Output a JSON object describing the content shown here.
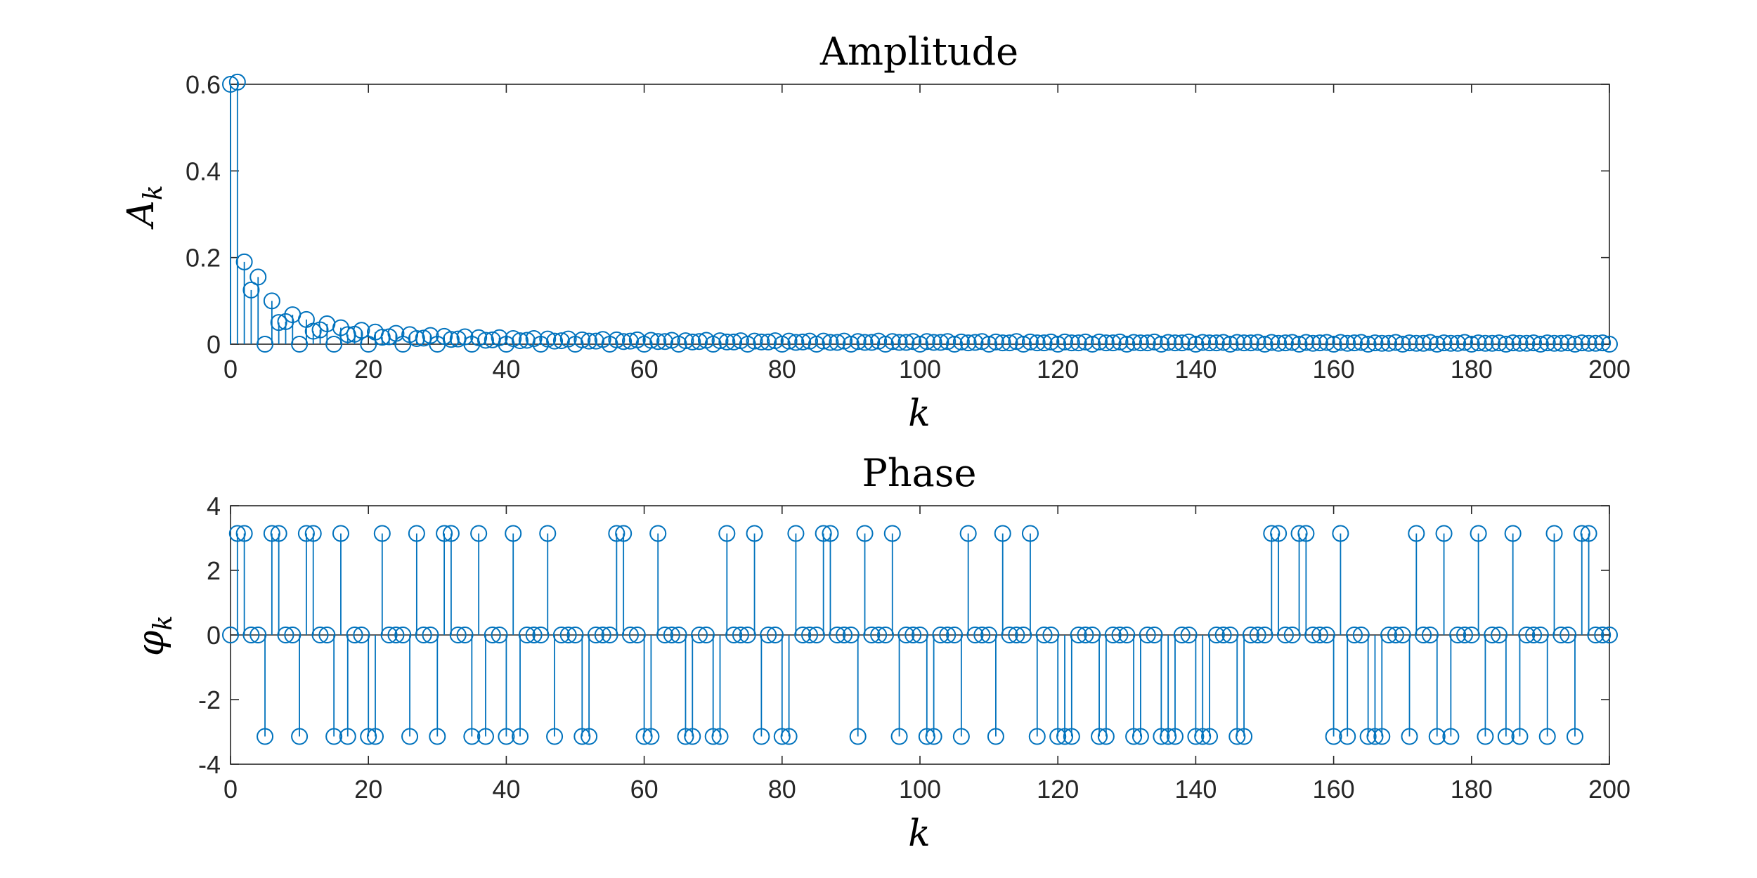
{
  "chart_data": [
    {
      "type": "stem",
      "title": "Amplitude",
      "xlabel": "k",
      "ylabel": "A",
      "ylabel_sub": "k",
      "xlim": [
        0,
        200
      ],
      "ylim": [
        0,
        0.6
      ],
      "xticks": [
        0,
        20,
        40,
        60,
        80,
        100,
        120,
        140,
        160,
        180,
        200
      ],
      "xtick_labels": [
        "0",
        "20",
        "40",
        "60",
        "80",
        "100",
        "120",
        "140",
        "160",
        "180",
        "200"
      ],
      "yticks": [
        0,
        0.2,
        0.4,
        0.6
      ],
      "ytick_labels": [
        "0",
        "0.2",
        "0.4",
        "0.6"
      ],
      "color": "#0072BD",
      "x_start": 0,
      "values": [
        0.6,
        0.605,
        0.19,
        0.125,
        0.155,
        0.0,
        0.1,
        0.05,
        0.052,
        0.068,
        0.0,
        0.057,
        0.03,
        0.033,
        0.047,
        0.0,
        0.038,
        0.022,
        0.023,
        0.032,
        0.0,
        0.028,
        0.016,
        0.017,
        0.025,
        0.0,
        0.022,
        0.013,
        0.014,
        0.02,
        0.0,
        0.018,
        0.011,
        0.012,
        0.017,
        0.0,
        0.015,
        0.009,
        0.01,
        0.015,
        0.0,
        0.013,
        0.008,
        0.009,
        0.013,
        0.0,
        0.012,
        0.007,
        0.008,
        0.012,
        0.0,
        0.01,
        0.007,
        0.007,
        0.011,
        0.0,
        0.01,
        0.006,
        0.007,
        0.01,
        0.0,
        0.009,
        0.006,
        0.006,
        0.009,
        0.0,
        0.008,
        0.005,
        0.006,
        0.009,
        0.0,
        0.008,
        0.005,
        0.005,
        0.008,
        0.0,
        0.007,
        0.005,
        0.005,
        0.008,
        0.0,
        0.007,
        0.004,
        0.005,
        0.007,
        0.0,
        0.007,
        0.004,
        0.004,
        0.007,
        0.0,
        0.006,
        0.004,
        0.004,
        0.007,
        0.0,
        0.006,
        0.004,
        0.004,
        0.006,
        0.0,
        0.006,
        0.004,
        0.004,
        0.006,
        0.0,
        0.005,
        0.003,
        0.004,
        0.006,
        0.0,
        0.005,
        0.003,
        0.003,
        0.006,
        0.0,
        0.005,
        0.003,
        0.003,
        0.005,
        0.0,
        0.005,
        0.003,
        0.003,
        0.005,
        0.0,
        0.005,
        0.003,
        0.003,
        0.005,
        0.0,
        0.004,
        0.003,
        0.003,
        0.005,
        0.0,
        0.004,
        0.003,
        0.003,
        0.005,
        0.0,
        0.004,
        0.003,
        0.003,
        0.004,
        0.0,
        0.004,
        0.003,
        0.003,
        0.004,
        0.0,
        0.004,
        0.002,
        0.003,
        0.004,
        0.0,
        0.004,
        0.002,
        0.003,
        0.004,
        0.0,
        0.004,
        0.002,
        0.003,
        0.004,
        0.0,
        0.003,
        0.002,
        0.002,
        0.004,
        0.0,
        0.003,
        0.002,
        0.002,
        0.004,
        0.0,
        0.003,
        0.002,
        0.002,
        0.004,
        0.0,
        0.003,
        0.002,
        0.002,
        0.003,
        0.0,
        0.003,
        0.002,
        0.002,
        0.003,
        0.0,
        0.003,
        0.002,
        0.002,
        0.003,
        0.0,
        0.003,
        0.002,
        0.002,
        0.003,
        0.0
      ]
    },
    {
      "type": "stem",
      "title": "Phase",
      "xlabel": "k",
      "ylabel": "φ",
      "ylabel_sub": "k",
      "xlim": [
        0,
        200
      ],
      "ylim": [
        -4,
        4
      ],
      "xticks": [
        0,
        20,
        40,
        60,
        80,
        100,
        120,
        140,
        160,
        180,
        200
      ],
      "xtick_labels": [
        "0",
        "20",
        "40",
        "60",
        "80",
        "100",
        "120",
        "140",
        "160",
        "180",
        "200"
      ],
      "yticks": [
        -4,
        -2,
        0,
        2,
        4
      ],
      "ytick_labels": [
        "-4",
        "-2",
        "0",
        "2",
        "4"
      ],
      "color": "#0072BD",
      "x_start": 0,
      "values": [
        0,
        3.1416,
        3.1416,
        0,
        0,
        -3.1416,
        3.1416,
        3.1416,
        0,
        0,
        -3.1416,
        3.1416,
        3.1416,
        0,
        0,
        -3.1416,
        3.1416,
        -3.1416,
        0,
        0,
        -3.1416,
        -3.1416,
        3.1416,
        0,
        0,
        0,
        -3.1416,
        3.1416,
        0,
        0,
        -3.1416,
        3.1416,
        3.1416,
        0,
        0,
        -3.1416,
        3.1416,
        -3.1416,
        0,
        0,
        -3.1416,
        3.1416,
        -3.1416,
        0,
        0,
        0,
        3.1416,
        -3.1416,
        0,
        0,
        0,
        -3.1416,
        -3.1416,
        0,
        0,
        0,
        3.1416,
        3.1416,
        0,
        0,
        -3.1416,
        -3.1416,
        3.1416,
        0,
        0,
        0,
        -3.1416,
        -3.1416,
        0,
        0,
        -3.1416,
        -3.1416,
        3.1416,
        0,
        0,
        0,
        3.1416,
        -3.1416,
        0,
        0,
        -3.1416,
        -3.1416,
        3.1416,
        0,
        0,
        0,
        3.1416,
        3.1416,
        0,
        0,
        0,
        -3.1416,
        3.1416,
        0,
        0,
        0,
        3.1416,
        -3.1416,
        0,
        0,
        0,
        -3.1416,
        -3.1416,
        0,
        0,
        0,
        -3.1416,
        3.1416,
        0,
        0,
        0,
        -3.1416,
        3.1416,
        0,
        0,
        0,
        3.1416,
        -3.1416,
        0,
        0,
        -3.1416,
        -3.1416,
        -3.1416,
        0,
        0,
        0,
        -3.1416,
        -3.1416,
        0,
        0,
        0,
        -3.1416,
        -3.1416,
        0,
        0,
        -3.1416,
        -3.1416,
        -3.1416,
        0,
        0,
        -3.1416,
        -3.1416,
        -3.1416,
        0,
        0,
        0,
        -3.1416,
        -3.1416,
        0,
        0,
        0,
        3.1416,
        3.1416,
        0,
        0,
        3.1416,
        3.1416,
        0,
        0,
        0,
        -3.1416,
        3.1416,
        -3.1416,
        0,
        0,
        -3.1416,
        -3.1416,
        -3.1416,
        0,
        0,
        0,
        -3.1416,
        3.1416,
        0,
        0,
        -3.1416,
        3.1416,
        -3.1416,
        0,
        0,
        0,
        3.1416,
        -3.1416,
        0,
        0,
        -3.1416,
        3.1416,
        -3.1416,
        0,
        0,
        0,
        -3.1416,
        3.1416,
        0,
        0,
        -3.1416,
        3.1416,
        3.1416,
        0,
        0,
        0
      ]
    }
  ]
}
